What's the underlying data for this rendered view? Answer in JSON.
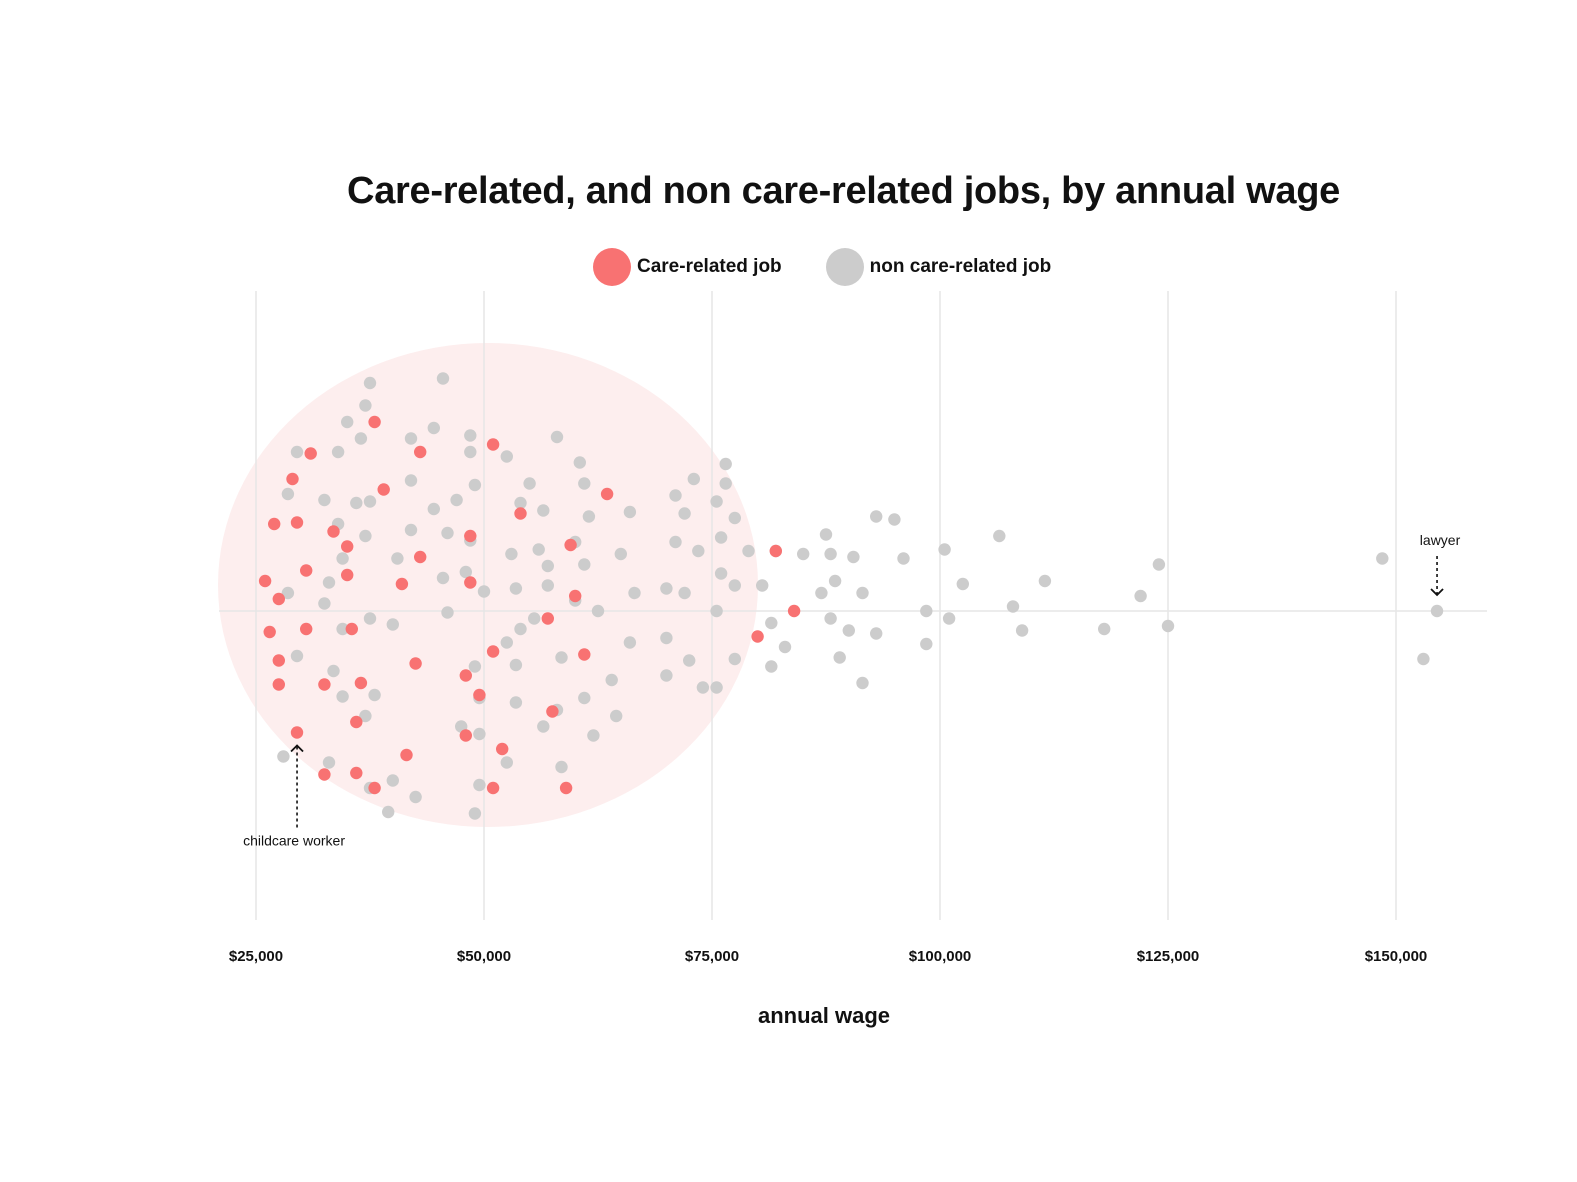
{
  "chart_data": {
    "type": "scatter",
    "title": "Care-related, and non care-related jobs, by annual wage",
    "xlabel": "annual wage",
    "ylabel": "",
    "xlim": [
      21000,
      160000
    ],
    "grid": true,
    "legend_placement": "top-center",
    "x_ticks": [
      25000,
      50000,
      75000,
      100000,
      125000,
      150000
    ],
    "x_tick_labels": [
      "$25,000",
      "$50,000",
      "$75,000",
      "$100,000",
      "$125,000",
      "$150,000"
    ],
    "colors": {
      "care": "#f87272",
      "noncare": "#cccccc",
      "cluster": "#fdeeee",
      "grid": "#e6e6e6"
    },
    "series": [
      {
        "name": "Care-related job",
        "color": "#f87272",
        "points": [
          [
            38000,
            1.26
          ],
          [
            31000,
            1.05
          ],
          [
            29000,
            0.88
          ],
          [
            43000,
            1.06
          ],
          [
            51000,
            1.11
          ],
          [
            39000,
            0.81
          ],
          [
            63500,
            0.78
          ],
          [
            27000,
            0.58
          ],
          [
            29500,
            0.59
          ],
          [
            33500,
            0.53
          ],
          [
            35000,
            0.43
          ],
          [
            54000,
            0.65
          ],
          [
            48500,
            0.5
          ],
          [
            59500,
            0.44
          ],
          [
            82000,
            0.4
          ],
          [
            43000,
            0.36
          ],
          [
            30500,
            0.27
          ],
          [
            26000,
            0.2
          ],
          [
            35000,
            0.24
          ],
          [
            41000,
            0.18
          ],
          [
            48500,
            0.19
          ],
          [
            27500,
            0.08
          ],
          [
            60000,
            0.1
          ],
          [
            84000,
            0.0
          ],
          [
            26500,
            -0.14
          ],
          [
            30500,
            -0.12
          ],
          [
            35500,
            -0.12
          ],
          [
            57000,
            -0.05
          ],
          [
            80000,
            -0.17
          ],
          [
            27500,
            -0.33
          ],
          [
            42500,
            -0.35
          ],
          [
            51000,
            -0.27
          ],
          [
            61000,
            -0.29
          ],
          [
            27500,
            -0.49
          ],
          [
            32500,
            -0.49
          ],
          [
            36500,
            -0.48
          ],
          [
            48000,
            -0.43
          ],
          [
            49500,
            -0.56
          ],
          [
            36000,
            -0.74
          ],
          [
            57500,
            -0.67
          ],
          [
            29500,
            -0.81
          ],
          [
            48000,
            -0.83
          ],
          [
            41500,
            -0.96
          ],
          [
            52000,
            -0.92
          ],
          [
            32500,
            -1.09
          ],
          [
            36000,
            -1.08
          ],
          [
            38000,
            -1.18
          ],
          [
            51000,
            -1.18
          ],
          [
            59000,
            -1.18
          ]
        ]
      },
      {
        "name": "non care-related job",
        "color": "#cccccc",
        "points": [
          [
            45500,
            1.55
          ],
          [
            37500,
            1.52
          ],
          [
            37000,
            1.37
          ],
          [
            44500,
            1.22
          ],
          [
            35000,
            1.26
          ],
          [
            42000,
            1.15
          ],
          [
            48500,
            1.17
          ],
          [
            58000,
            1.16
          ],
          [
            36500,
            1.15
          ],
          [
            29500,
            1.06
          ],
          [
            34000,
            1.06
          ],
          [
            48500,
            1.06
          ],
          [
            52500,
            1.03
          ],
          [
            60500,
            0.99
          ],
          [
            76500,
            0.98
          ],
          [
            73000,
            0.88
          ],
          [
            42000,
            0.87
          ],
          [
            28500,
            0.78
          ],
          [
            49000,
            0.84
          ],
          [
            55000,
            0.85
          ],
          [
            61000,
            0.85
          ],
          [
            76500,
            0.85
          ],
          [
            32500,
            0.74
          ],
          [
            36000,
            0.72
          ],
          [
            37500,
            0.73
          ],
          [
            47000,
            0.74
          ],
          [
            54000,
            0.72
          ],
          [
            56500,
            0.67
          ],
          [
            71000,
            0.77
          ],
          [
            75500,
            0.73
          ],
          [
            44500,
            0.68
          ],
          [
            61500,
            0.63
          ],
          [
            66000,
            0.66
          ],
          [
            72000,
            0.65
          ],
          [
            77500,
            0.62
          ],
          [
            93000,
            0.63
          ],
          [
            95000,
            0.61
          ],
          [
            87500,
            0.51
          ],
          [
            34000,
            0.58
          ],
          [
            42000,
            0.54
          ],
          [
            46000,
            0.52
          ],
          [
            48500,
            0.47
          ],
          [
            37000,
            0.5
          ],
          [
            60000,
            0.46
          ],
          [
            61000,
            0.31
          ],
          [
            56000,
            0.41
          ],
          [
            53000,
            0.38
          ],
          [
            65000,
            0.38
          ],
          [
            71000,
            0.46
          ],
          [
            73500,
            0.4
          ],
          [
            76000,
            0.49
          ],
          [
            79000,
            0.4
          ],
          [
            82000,
            0.4
          ],
          [
            85000,
            0.38
          ],
          [
            88000,
            0.38
          ],
          [
            90500,
            0.36
          ],
          [
            96000,
            0.35
          ],
          [
            100500,
            0.41
          ],
          [
            106500,
            0.5
          ],
          [
            124000,
            0.31
          ],
          [
            148500,
            0.35
          ],
          [
            34500,
            0.35
          ],
          [
            40500,
            0.35
          ],
          [
            57000,
            0.3
          ],
          [
            48000,
            0.26
          ],
          [
            45500,
            0.22
          ],
          [
            33000,
            0.19
          ],
          [
            57000,
            0.17
          ],
          [
            76000,
            0.25
          ],
          [
            77500,
            0.17
          ],
          [
            80500,
            0.17
          ],
          [
            88500,
            0.2
          ],
          [
            102500,
            0.18
          ],
          [
            111500,
            0.2
          ],
          [
            28500,
            0.12
          ],
          [
            50000,
            0.13
          ],
          [
            53500,
            0.15
          ],
          [
            66500,
            0.12
          ],
          [
            70000,
            0.15
          ],
          [
            72000,
            0.12
          ],
          [
            87000,
            0.12
          ],
          [
            91500,
            0.12
          ],
          [
            122000,
            0.1
          ],
          [
            32500,
            0.05
          ],
          [
            60000,
            0.07
          ],
          [
            46000,
            -0.01
          ],
          [
            62500,
            0.0
          ],
          [
            75500,
            0.0
          ],
          [
            98500,
            0.0
          ],
          [
            108000,
            0.03
          ],
          [
            101000,
            -0.05
          ],
          [
            154500,
            0.0
          ],
          [
            37500,
            -0.05
          ],
          [
            40000,
            -0.09
          ],
          [
            55500,
            -0.05
          ],
          [
            81500,
            -0.08
          ],
          [
            88000,
            -0.05
          ],
          [
            34500,
            -0.12
          ],
          [
            54000,
            -0.12
          ],
          [
            90000,
            -0.13
          ],
          [
            93000,
            -0.15
          ],
          [
            109000,
            -0.13
          ],
          [
            118000,
            -0.12
          ],
          [
            125000,
            -0.1
          ],
          [
            52500,
            -0.21
          ],
          [
            66000,
            -0.21
          ],
          [
            70000,
            -0.18
          ],
          [
            83000,
            -0.24
          ],
          [
            98500,
            -0.22
          ],
          [
            29500,
            -0.3
          ],
          [
            53500,
            -0.36
          ],
          [
            58500,
            -0.31
          ],
          [
            72500,
            -0.33
          ],
          [
            77500,
            -0.32
          ],
          [
            81500,
            -0.37
          ],
          [
            89000,
            -0.31
          ],
          [
            153000,
            -0.32
          ],
          [
            33500,
            -0.4
          ],
          [
            49000,
            -0.37
          ],
          [
            70000,
            -0.43
          ],
          [
            64000,
            -0.46
          ],
          [
            91500,
            -0.48
          ],
          [
            74000,
            -0.51
          ],
          [
            75500,
            -0.51
          ],
          [
            34500,
            -0.57
          ],
          [
            38000,
            -0.56
          ],
          [
            49500,
            -0.58
          ],
          [
            53500,
            -0.61
          ],
          [
            61000,
            -0.58
          ],
          [
            58000,
            -0.66
          ],
          [
            37000,
            -0.7
          ],
          [
            64500,
            -0.7
          ],
          [
            47500,
            -0.77
          ],
          [
            56500,
            -0.77
          ],
          [
            49500,
            -0.82
          ],
          [
            62000,
            -0.83
          ],
          [
            28000,
            -0.97
          ],
          [
            33000,
            -1.01
          ],
          [
            52500,
            -1.01
          ],
          [
            58500,
            -1.04
          ],
          [
            40000,
            -1.13
          ],
          [
            49500,
            -1.16
          ],
          [
            37500,
            -1.18
          ],
          [
            42500,
            -1.24
          ],
          [
            39500,
            -1.34
          ],
          [
            49000,
            -1.35
          ]
        ]
      }
    ],
    "annotations": [
      {
        "text": "lawyer",
        "x": 154500,
        "y": 0.0,
        "side": "above"
      },
      {
        "text": "childcare worker",
        "x": 29500,
        "y": -0.81,
        "side": "below"
      }
    ]
  }
}
